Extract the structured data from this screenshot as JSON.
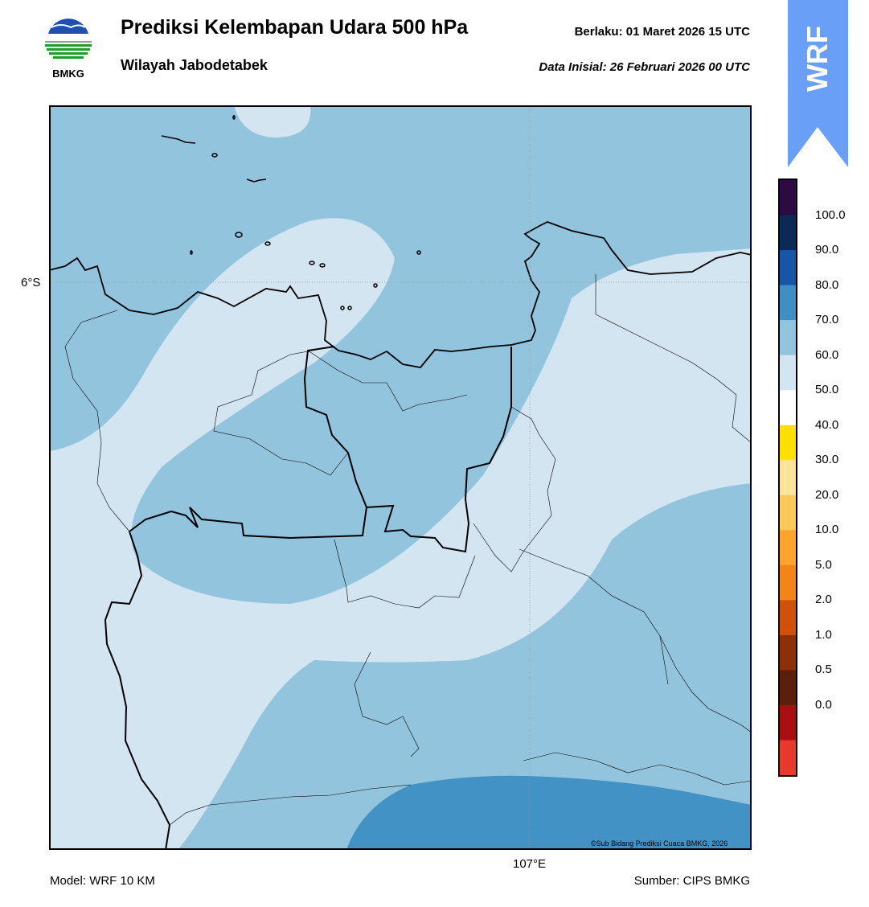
{
  "header": {
    "title": "Prediksi Kelembapan Udara 500 hPa",
    "subtitle": "Wilayah Jabodetabek",
    "valid_label": "Berlaku:  01 Maret 2026 15 UTC",
    "init_label": "Data Inisial:  26 Februari 2026 00 UTC"
  },
  "logo": {
    "text": "BMKG",
    "icon": "bmkg-logo-icon"
  },
  "badge": {
    "text": "WRF",
    "color": "#6a9ff7"
  },
  "map": {
    "lat_label": "6°S",
    "lon_label": "107°E",
    "credit": "©Sub Bidang Prediksi Cuaca BMKG, 2026"
  },
  "footer": {
    "model": "Model: WRF 10 KM",
    "source": "Sumber: CIPS BMKG"
  },
  "colorbar": {
    "labels": [
      "100.0",
      "90.0",
      "80.0",
      "70.0",
      "60.0",
      "50.0",
      "40.0",
      "30.0",
      "20.0",
      "10.0",
      "5.0",
      "2.0",
      "1.0",
      "0.5",
      "0.0"
    ],
    "colors_top_to_bottom": [
      "#2c0a44",
      "#0a2a55",
      "#1656a6",
      "#3d8fc4",
      "#93c4de",
      "#d2e5f1",
      "#ffffff",
      "#ffe000",
      "#ffe49a",
      "#ffc85a",
      "#fea42c",
      "#f38418",
      "#d0520a",
      "#8f2f09",
      "#5c1f0c",
      "#a90e10",
      "#e8392e"
    ],
    "colors_map": {
      "band_50_60": "#d2e5f1",
      "band_60_70": "#93c4de",
      "band_70_80": "#4292c6"
    }
  }
}
